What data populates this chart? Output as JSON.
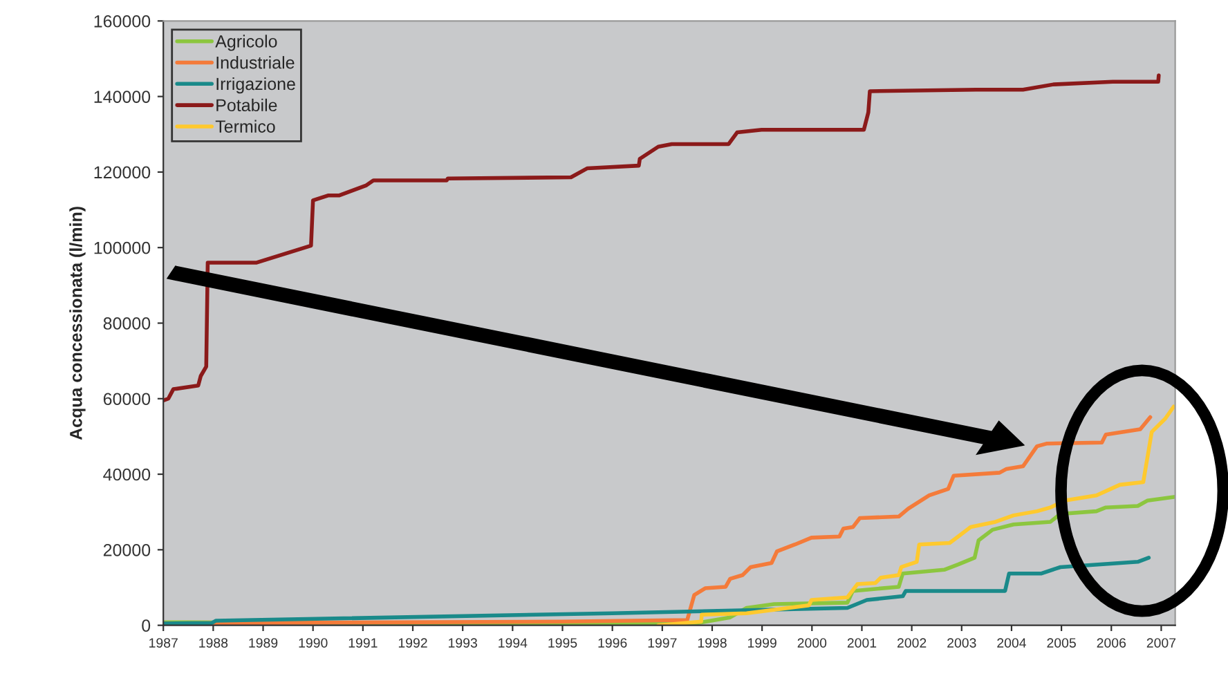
{
  "chart_data": {
    "type": "line",
    "ylabel": "Acqua concessionata (l/min)",
    "xlim": [
      1987,
      2007.28
    ],
    "xticks": [
      1987,
      1988,
      1989,
      1990,
      1991,
      1992,
      1993,
      1994,
      1995,
      1996,
      1997,
      1998,
      1999,
      2000,
      2001,
      2002,
      2003,
      2004,
      2005,
      2006,
      2007
    ],
    "ylim": [
      0,
      160000
    ],
    "yticks": [
      0,
      20000,
      40000,
      60000,
      80000,
      100000,
      120000,
      140000,
      160000
    ],
    "legend": "top left",
    "series": [
      {
        "name": "Agricolo",
        "color": "#8cc63f",
        "x": [
          1987,
          1987.5,
          1997.58,
          1998.36,
          1998.69,
          1999.24,
          2000.71,
          2000.82,
          2001.74,
          2001.82,
          2002.65,
          2002.93,
          2003.26,
          2003.34,
          2003.62,
          2004.04,
          2004.78,
          2004.98,
          2005.7,
          2005.89,
          2006.53,
          2006.72,
          2007.28
        ],
        "values": [
          800,
          800,
          300,
          2100,
          4600,
          5600,
          6000,
          9100,
          10200,
          13700,
          14700,
          16100,
          17900,
          22500,
          25300,
          26700,
          27400,
          29500,
          30200,
          31200,
          31600,
          33000,
          34000
        ]
      },
      {
        "name": "Industriale",
        "color": "#f47b3a",
        "x": [
          1987,
          1995,
          1997.5,
          1997.64,
          1997.86,
          1998.27,
          1998.36,
          1998.61,
          1998.77,
          1999.19,
          1999.3,
          1999.66,
          1999.99,
          2000.55,
          2000.63,
          2000.82,
          2000.96,
          2001.74,
          2001.93,
          2002.35,
          2002.73,
          2002.84,
          2003.76,
          2003.9,
          2004.23,
          2004.51,
          2004.7,
          2005.81,
          2005.89,
          2006.58,
          2006.78
        ],
        "values": [
          500,
          1000,
          1400,
          8000,
          9800,
          10200,
          12300,
          13300,
          15400,
          16500,
          19600,
          21400,
          23200,
          23500,
          25600,
          26000,
          28400,
          28800,
          30900,
          34400,
          36100,
          39600,
          40400,
          41400,
          42100,
          47400,
          48100,
          48400,
          50500,
          51900,
          55100
        ]
      },
      {
        "name": "Irrigazione",
        "color": "#1a8a8a",
        "x": [
          1987,
          1987.97,
          1988.05,
          1996,
          2000.71,
          2001.1,
          2001.82,
          2001.88,
          2003.87,
          2003.95,
          2004.59,
          2004.98,
          2006.53,
          2006.75
        ],
        "values": [
          500,
          600,
          1200,
          3200,
          4600,
          6700,
          7700,
          9100,
          9100,
          13700,
          13700,
          15400,
          16800,
          17900
        ]
      },
      {
        "name": "Potabile",
        "color": "#8b1a1a",
        "x": [
          1987,
          1987.1,
          1987.2,
          1987.7,
          1987.75,
          1987.86,
          1987.89,
          1988.86,
          1989.96,
          1990.0,
          1990.3,
          1990.52,
          1991.07,
          1991.21,
          1992.68,
          1992.7,
          1995.17,
          1995.5,
          1996.53,
          1996.55,
          1996.92,
          1997.19,
          1998.33,
          1998.5,
          1998.99,
          2001.04,
          2001.13,
          2001.16,
          2003.29,
          2004.23,
          2004.84,
          2006.03,
          2006.94,
          2006.95
        ],
        "values": [
          59500,
          60000,
          62500,
          63500,
          66000,
          68500,
          96000,
          96000,
          100500,
          112500,
          113800,
          113800,
          116500,
          117800,
          117800,
          118300,
          118600,
          121000,
          121700,
          123500,
          126700,
          127400,
          127400,
          130500,
          131200,
          131200,
          135800,
          141400,
          141800,
          141800,
          143200,
          143900,
          143900,
          145600
        ]
      },
      {
        "name": "Termico",
        "color": "#ffc92e",
        "x": [
          1996.92,
          1997.78,
          1997.79,
          1998.69,
          1999.94,
          1999.99,
          2000.71,
          2000.91,
          2001.27,
          2001.38,
          2001.74,
          2001.79,
          2002.1,
          2002.15,
          2002.76,
          2002.93,
          2003.18,
          2003.68,
          2004.04,
          2004.51,
          2004.78,
          2005.06,
          2005.7,
          2006.17,
          2006.64,
          2006.81,
          2007.08,
          2007.25
        ],
        "values": [
          0,
          1000,
          2800,
          3200,
          5300,
          6700,
          7400,
          10900,
          11200,
          12600,
          13300,
          15400,
          16800,
          21400,
          21800,
          23500,
          26000,
          27400,
          29100,
          30200,
          31200,
          33000,
          34400,
          37200,
          37900,
          51200,
          54700,
          57900
        ]
      }
    ]
  }
}
